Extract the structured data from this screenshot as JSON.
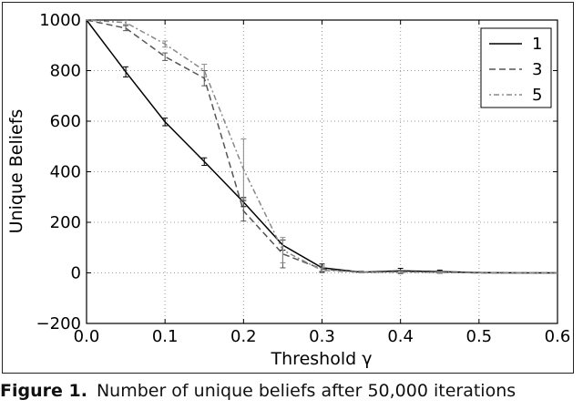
{
  "chart_data": {
    "type": "line",
    "xlabel": "Threshold γ",
    "ylabel": "Unique Beliefs",
    "xlim": [
      0.0,
      0.6
    ],
    "ylim": [
      -200,
      1000
    ],
    "xticks": [
      "0.0",
      "0.1",
      "0.2",
      "0.3",
      "0.4",
      "0.5",
      "0.6"
    ],
    "yticks": [
      "−200",
      "0",
      "200",
      "400",
      "600",
      "800",
      "1000"
    ],
    "grid": true,
    "legend_position": "top-right",
    "series": [
      {
        "name": "1",
        "style": "solid",
        "color": "#000000",
        "x": [
          0.0,
          0.05,
          0.1,
          0.15,
          0.2,
          0.25,
          0.3,
          0.35,
          0.4,
          0.45,
          0.5,
          0.55,
          0.6
        ],
        "y": [
          1000,
          795,
          597,
          440,
          280,
          110,
          20,
          3,
          8,
          5,
          1,
          0,
          0
        ],
        "err": [
          0,
          20,
          15,
          15,
          18,
          20,
          15,
          3,
          10,
          6,
          1,
          0,
          0
        ]
      },
      {
        "name": "3",
        "style": "dashed",
        "color": "#555555",
        "x": [
          0.0,
          0.05,
          0.1,
          0.15,
          0.2,
          0.25,
          0.3,
          0.35,
          0.4,
          0.45,
          0.5,
          0.55,
          0.6
        ],
        "y": [
          1000,
          968,
          855,
          770,
          245,
          75,
          15,
          2,
          5,
          3,
          0,
          0,
          0
        ],
        "err": [
          0,
          10,
          15,
          30,
          40,
          55,
          12,
          2,
          5,
          4,
          0,
          0,
          0
        ]
      },
      {
        "name": "5",
        "style": "dashdot",
        "color": "#888888",
        "x": [
          0.0,
          0.05,
          0.1,
          0.15,
          0.2,
          0.25,
          0.3,
          0.35,
          0.4,
          0.45,
          0.5,
          0.55,
          0.6
        ],
        "y": [
          1000,
          990,
          905,
          800,
          410,
          90,
          10,
          2,
          3,
          2,
          0,
          0,
          0
        ],
        "err": [
          0,
          8,
          12,
          25,
          120,
          50,
          10,
          2,
          3,
          2,
          0,
          0,
          0
        ]
      }
    ]
  },
  "caption": {
    "label": "Figure 1.",
    "text": "Number of unique beliefs after 50,000 iterations"
  }
}
